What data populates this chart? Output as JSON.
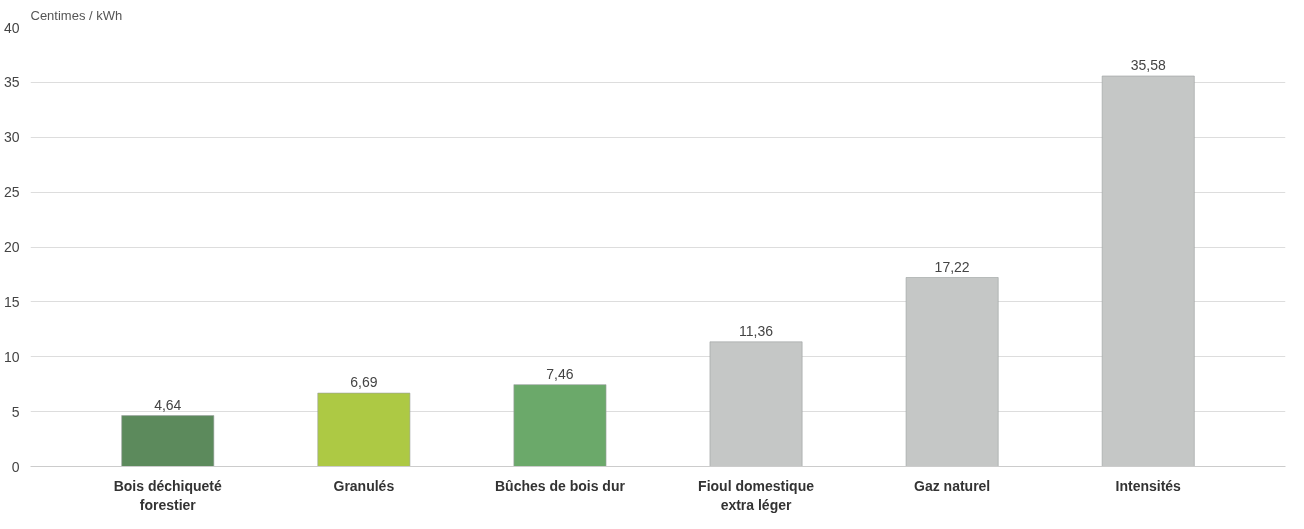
{
  "chart_data": {
    "type": "bar",
    "ylabel": "Centimes / kWh",
    "categories": [
      "Bois déchiqueté\nforestier",
      "Granulés",
      "Bûches de bois dur",
      "Fioul domestique\nextra léger",
      "Gaz naturel",
      "Intensités"
    ],
    "values": [
      4.64,
      6.69,
      7.46,
      11.36,
      17.22,
      35.58
    ],
    "value_labels": [
      "4,64",
      "6,69",
      "7,46",
      "11,36",
      "17,22",
      "35,58"
    ],
    "colors": [
      "#5c8a5c",
      "#adc944",
      "#6ba96a",
      "#c5c7c6",
      "#c5c7c6",
      "#c5c7c6"
    ],
    "ylim": [
      0,
      40
    ],
    "yticks": [
      0,
      5,
      10,
      15,
      20,
      25,
      30,
      35,
      40
    ],
    "grid": "y"
  }
}
